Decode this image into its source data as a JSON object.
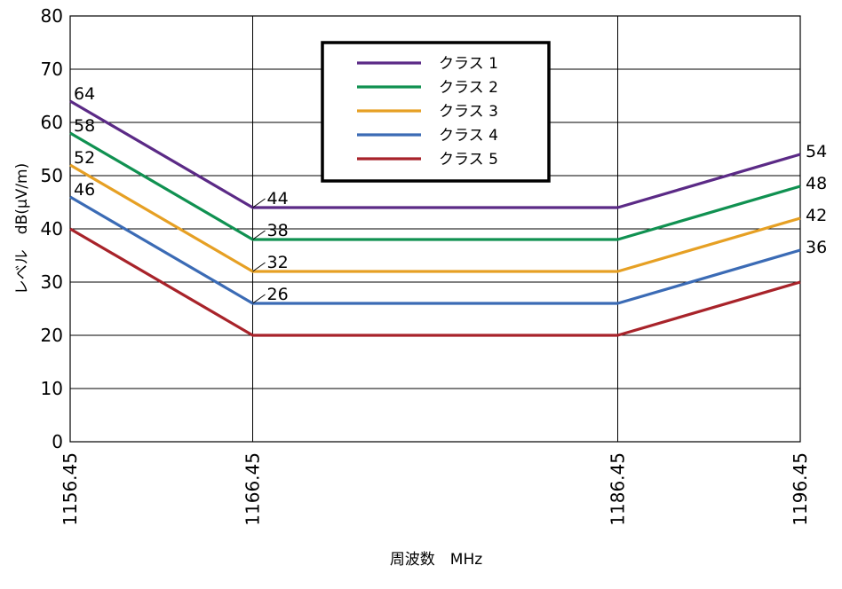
{
  "chart_data": {
    "type": "line",
    "title": "",
    "xlabel": "周波数　MHz",
    "ylabel": "レベル　dB(μV/m)",
    "x": [
      1156.45,
      1166.45,
      1186.45,
      1196.45
    ],
    "x_tick_labels": [
      "1156.45",
      "1166.45",
      "1186.45",
      "1196.45"
    ],
    "ylim": [
      0,
      80
    ],
    "y_ticks": [
      0,
      10,
      20,
      30,
      40,
      50,
      60,
      70,
      80
    ],
    "grid": true,
    "legend_position": "top-center",
    "series": [
      {
        "name": "クラス 1",
        "color": "#5b2a86",
        "values": [
          64,
          44,
          44,
          54
        ],
        "labels": [
          "64",
          "44",
          "",
          "54"
        ]
      },
      {
        "name": "クラス 2",
        "color": "#109151",
        "values": [
          58,
          38,
          38,
          48
        ],
        "labels": [
          "58",
          "38",
          "",
          "48"
        ]
      },
      {
        "name": "クラス 3",
        "color": "#e6a024",
        "values": [
          52,
          32,
          32,
          42
        ],
        "labels": [
          "52",
          "32",
          "",
          "42"
        ]
      },
      {
        "name": "クラス 4",
        "color": "#3b6bb5",
        "values": [
          46,
          26,
          26,
          36
        ],
        "labels": [
          "46",
          "26",
          "",
          "36"
        ]
      },
      {
        "name": "クラス 5",
        "color": "#a8232a",
        "values": [
          40,
          20,
          20,
          30
        ],
        "labels": [
          "",
          "",
          "",
          ""
        ]
      }
    ]
  }
}
